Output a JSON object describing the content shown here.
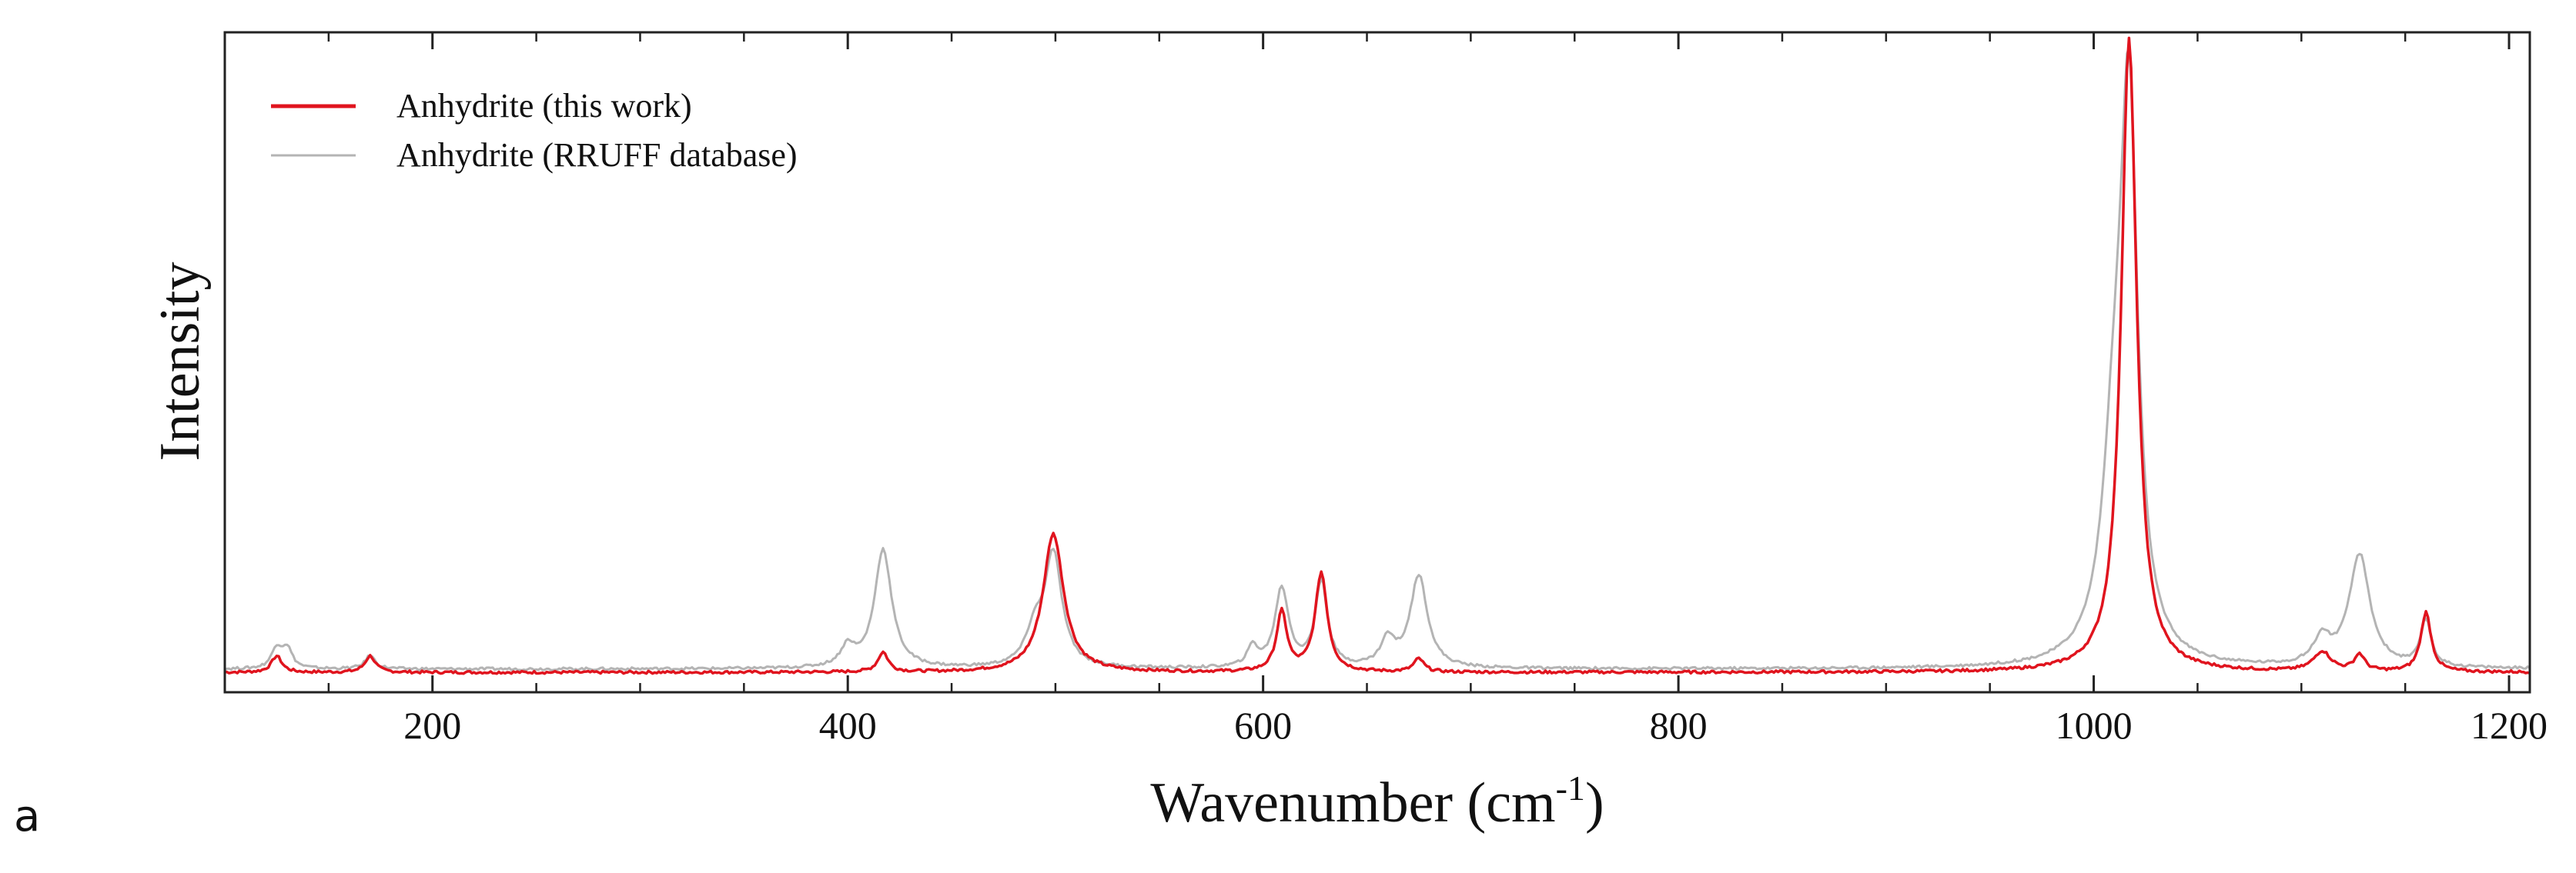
{
  "panel_label": "a",
  "chart_data": {
    "type": "line",
    "title": "",
    "xlabel": "Wavenumber (cm",
    "xlabel_sup": "-1",
    "xlabel_close": ")",
    "ylabel": "Intensity",
    "xlim": [
      100,
      1210
    ],
    "ylim": [
      0,
      1.0
    ],
    "xticks": [
      200,
      400,
      600,
      800,
      1000,
      1200
    ],
    "minor_step": 50,
    "grid": false,
    "legend_position": "top-left",
    "series": [
      {
        "name": "Anhydrite (this work)",
        "color": "#e0141e",
        "baseline": 0.03,
        "peaks": [
          {
            "x": 125,
            "h": 0.025,
            "w": 3
          },
          {
            "x": 170,
            "h": 0.025,
            "w": 3
          },
          {
            "x": 417,
            "h": 0.03,
            "w": 3
          },
          {
            "x": 499,
            "h": 0.21,
            "w": 6
          },
          {
            "x": 609,
            "h": 0.09,
            "w": 3
          },
          {
            "x": 628,
            "h": 0.15,
            "w": 3.5
          },
          {
            "x": 675,
            "h": 0.02,
            "w": 3
          },
          {
            "x": 1017,
            "h": 0.96,
            "w": 4.5
          },
          {
            "x": 1110,
            "h": 0.03,
            "w": 5
          },
          {
            "x": 1128,
            "h": 0.025,
            "w": 3
          },
          {
            "x": 1160,
            "h": 0.09,
            "w": 3
          }
        ]
      },
      {
        "name": "Anhydrite (RRUFF database)",
        "color": "#b4b4b4",
        "baseline": 0.035,
        "peaks": [
          {
            "x": 125,
            "h": 0.03,
            "w": 3
          },
          {
            "x": 130,
            "h": 0.03,
            "w": 3
          },
          {
            "x": 170,
            "h": 0.02,
            "w": 3
          },
          {
            "x": 400,
            "h": 0.03,
            "w": 4
          },
          {
            "x": 417,
            "h": 0.18,
            "w": 5
          },
          {
            "x": 490,
            "h": 0.05,
            "w": 5
          },
          {
            "x": 499,
            "h": 0.17,
            "w": 5
          },
          {
            "x": 595,
            "h": 0.03,
            "w": 3
          },
          {
            "x": 609,
            "h": 0.12,
            "w": 4
          },
          {
            "x": 628,
            "h": 0.13,
            "w": 3.5
          },
          {
            "x": 660,
            "h": 0.04,
            "w": 4
          },
          {
            "x": 675,
            "h": 0.14,
            "w": 5
          },
          {
            "x": 1010,
            "h": 0.28,
            "w": 7
          },
          {
            "x": 1017,
            "h": 0.8,
            "w": 5
          },
          {
            "x": 1110,
            "h": 0.04,
            "w": 5
          },
          {
            "x": 1128,
            "h": 0.17,
            "w": 6
          },
          {
            "x": 1160,
            "h": 0.07,
            "w": 3
          }
        ]
      }
    ]
  }
}
